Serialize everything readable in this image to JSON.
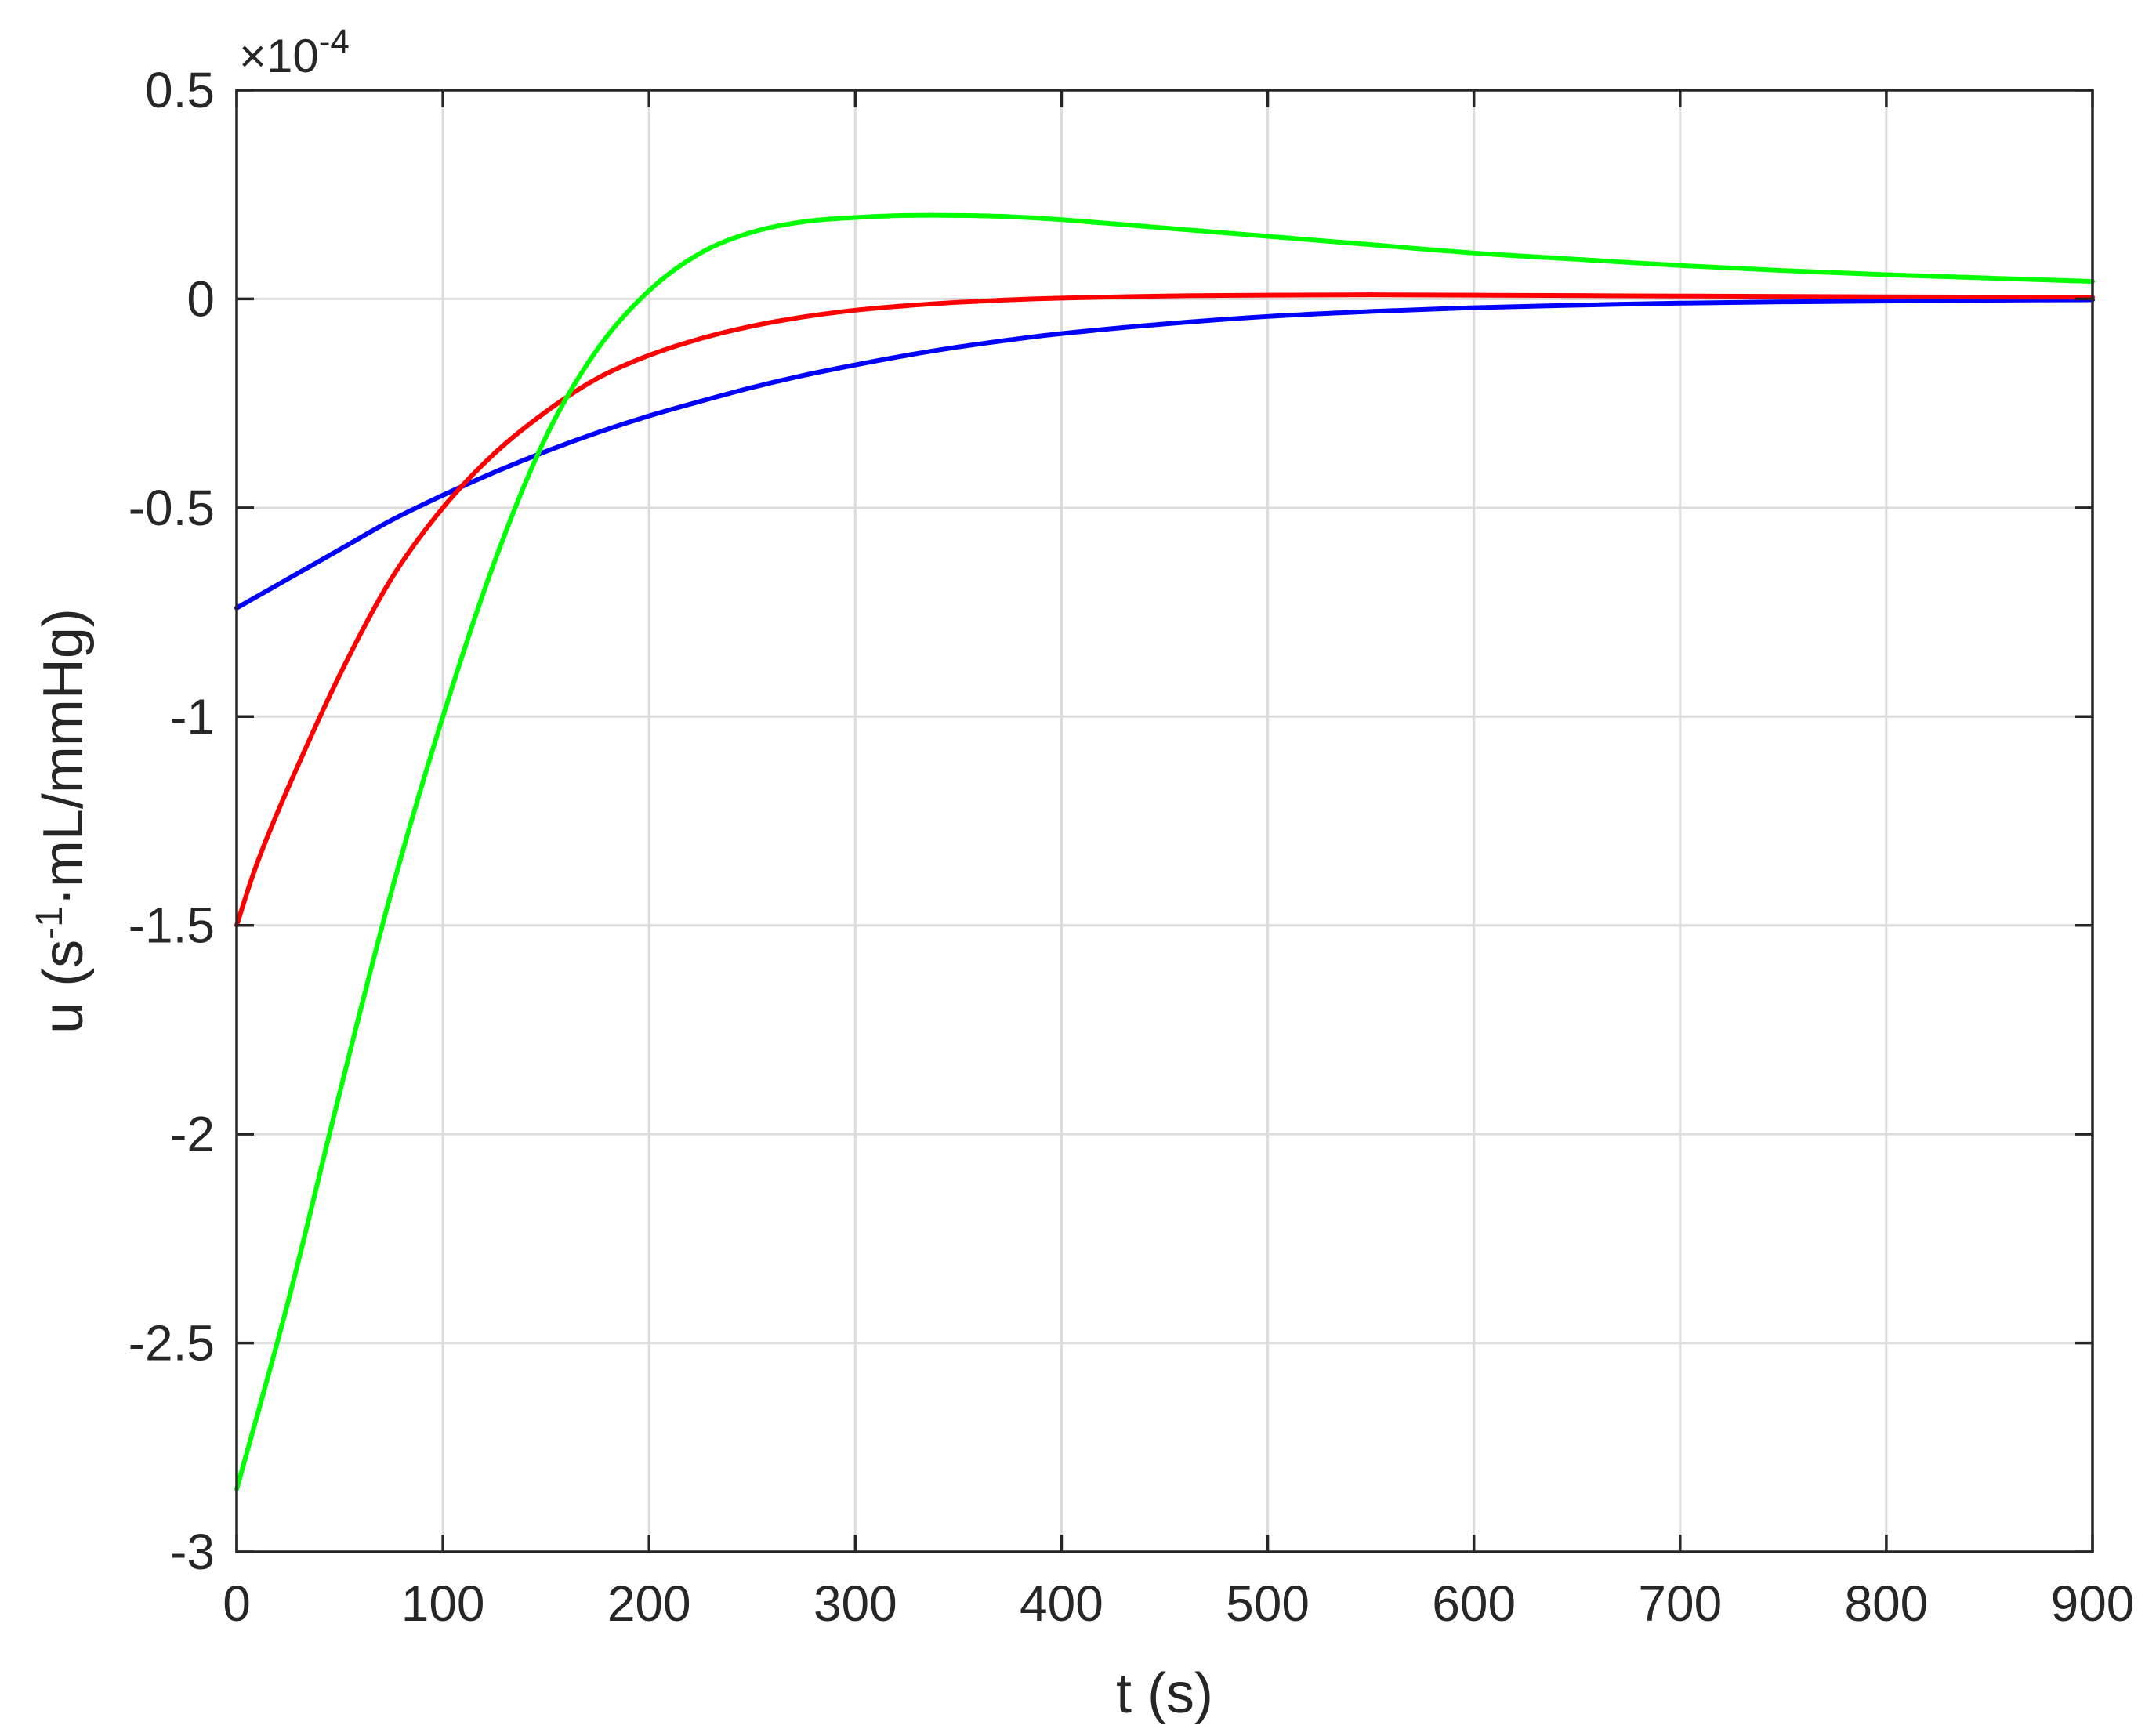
{
  "chart_data": {
    "type": "line",
    "title": "",
    "xlabel": "t (s)",
    "ylabel_main": "u (s",
    "ylabel_sup": "-1",
    "ylabel_rest": "·mL/mmHg)",
    "y_multiplier_base": "×10",
    "y_multiplier_exp": "-4",
    "xlim": [
      0,
      900
    ],
    "ylim": [
      -3,
      0.5
    ],
    "x_ticks": [
      0,
      100,
      200,
      300,
      400,
      500,
      600,
      700,
      800,
      900
    ],
    "x_tick_labels": [
      "0",
      "100",
      "200",
      "300",
      "400",
      "500",
      "600",
      "700",
      "800",
      "900"
    ],
    "y_ticks": [
      -3,
      -2.5,
      -2,
      -1.5,
      -1,
      -0.5,
      0,
      0.5
    ],
    "y_tick_labels": [
      "-3",
      "-2.5",
      "-2",
      "-1.5",
      "-1",
      "-0.5",
      "0",
      "0.5"
    ],
    "grid": true,
    "legend": "none",
    "series": [
      {
        "color": "#0000ff",
        "x": [
          0,
          25,
          50,
          75,
          100,
          125,
          150,
          175,
          200,
          225,
          250,
          275,
          300,
          325,
          350,
          375,
          400,
          450,
          500,
          550,
          600,
          650,
          700,
          750,
          800,
          850,
          900
        ],
        "y": [
          -0.74,
          -0.67,
          -0.6,
          -0.53,
          -0.47,
          -0.415,
          -0.365,
          -0.32,
          -0.28,
          -0.245,
          -0.212,
          -0.183,
          -0.158,
          -0.135,
          -0.115,
          -0.098,
          -0.083,
          -0.06,
          -0.042,
          -0.03,
          -0.021,
          -0.015,
          -0.01,
          -0.007,
          -0.005,
          -0.003,
          -0.002
        ]
      },
      {
        "color": "#ff0000",
        "x": [
          0,
          10,
          25,
          50,
          75,
          100,
          125,
          150,
          175,
          200,
          225,
          250,
          275,
          300,
          325,
          350,
          375,
          400,
          450,
          500,
          550,
          600,
          650,
          700,
          800,
          900
        ],
        "y": [
          -1.5,
          -1.35,
          -1.17,
          -0.9,
          -0.67,
          -0.5,
          -0.37,
          -0.27,
          -0.19,
          -0.135,
          -0.095,
          -0.065,
          -0.043,
          -0.027,
          -0.016,
          -0.008,
          -0.002,
          0.002,
          0.007,
          0.009,
          0.01,
          0.009,
          0.008,
          0.007,
          0.005,
          0.004
        ]
      },
      {
        "color": "#00ff00",
        "x": [
          0,
          25,
          50,
          75,
          100,
          125,
          150,
          175,
          200,
          225,
          250,
          275,
          300,
          325,
          350,
          375,
          400,
          450,
          500,
          550,
          600,
          650,
          700,
          750,
          800,
          850,
          900
        ],
        "y": [
          -2.85,
          -2.4,
          -1.9,
          -1.42,
          -1.0,
          -0.63,
          -0.33,
          -0.12,
          0.02,
          0.11,
          0.16,
          0.185,
          0.195,
          0.2,
          0.2,
          0.197,
          0.19,
          0.17,
          0.15,
          0.13,
          0.11,
          0.095,
          0.08,
          0.068,
          0.058,
          0.05,
          0.042
        ]
      }
    ]
  }
}
